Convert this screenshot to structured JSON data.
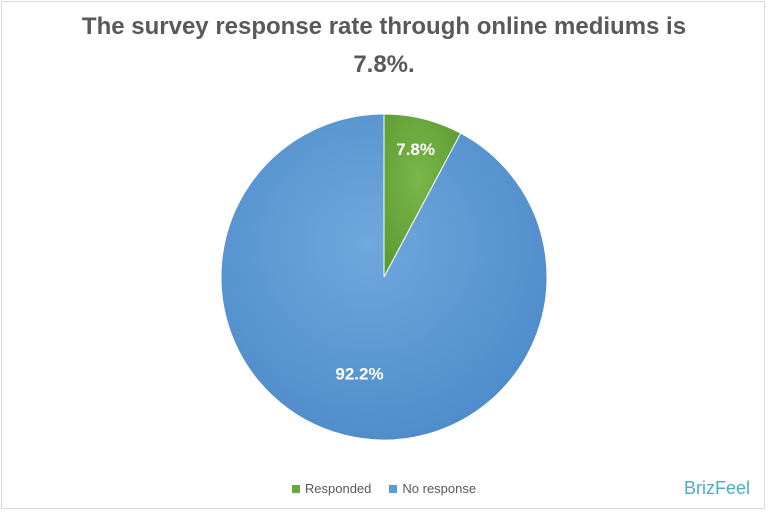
{
  "chart_data": {
    "type": "pie",
    "title": "The survey response rate through online mediums is 7.8%.",
    "categories": [
      "Responded",
      "No response"
    ],
    "values": [
      7.8,
      92.2
    ],
    "data_labels": [
      "7.8%",
      "92.2%"
    ],
    "colors": [
      "#6aaa3c",
      "#5b9bd5"
    ],
    "legend_position": "bottom"
  },
  "brand": "BrizFeel"
}
